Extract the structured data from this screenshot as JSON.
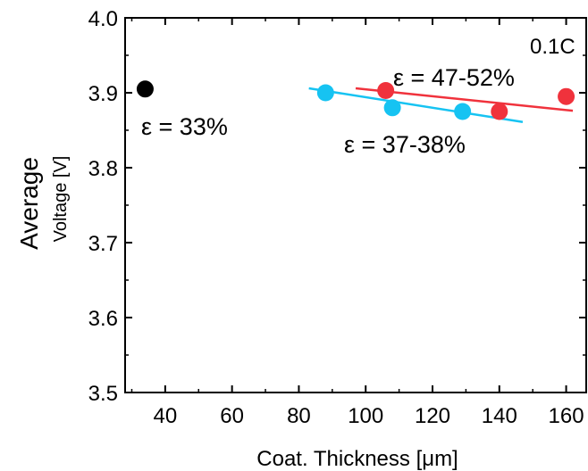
{
  "chart_data": {
    "type": "scatter",
    "xlabel": "Coat. Thickness [μm]",
    "ylabel_outer": "Average",
    "ylabel_inner": "Voltage [V]",
    "xlim": [
      28,
      166
    ],
    "ylim": [
      3.5,
      4.0
    ],
    "x_ticks": [
      40,
      60,
      80,
      100,
      120,
      140,
      160
    ],
    "y_ticks": [
      3.5,
      3.6,
      3.7,
      3.8,
      3.9,
      4.0
    ],
    "x_tick_labels": [
      "40",
      "60",
      "80",
      "100",
      "120",
      "140",
      "160"
    ],
    "y_tick_labels": [
      "3.5",
      "3.6",
      "3.7",
      "3.8",
      "3.9",
      "4.0"
    ],
    "rate_label": "0.1C",
    "series": [
      {
        "label": "ε = 33%",
        "color": "#000000",
        "points": [
          [
            34,
            3.905
          ]
        ],
        "fit": null
      },
      {
        "label": "ε = 47-52%",
        "color": "#f0323c",
        "points": [
          [
            106,
            3.903
          ],
          [
            140,
            3.875
          ],
          [
            160,
            3.895
          ]
        ],
        "fit": [
          [
            97,
            3.906
          ],
          [
            162,
            3.876
          ]
        ]
      },
      {
        "label": "ε = 37-38%",
        "color": "#16c3f2",
        "points": [
          [
            88,
            3.9
          ],
          [
            108,
            3.88
          ],
          [
            129,
            3.875
          ]
        ],
        "fit": [
          [
            83,
            3.906
          ],
          [
            147,
            3.861
          ]
        ]
      }
    ]
  }
}
